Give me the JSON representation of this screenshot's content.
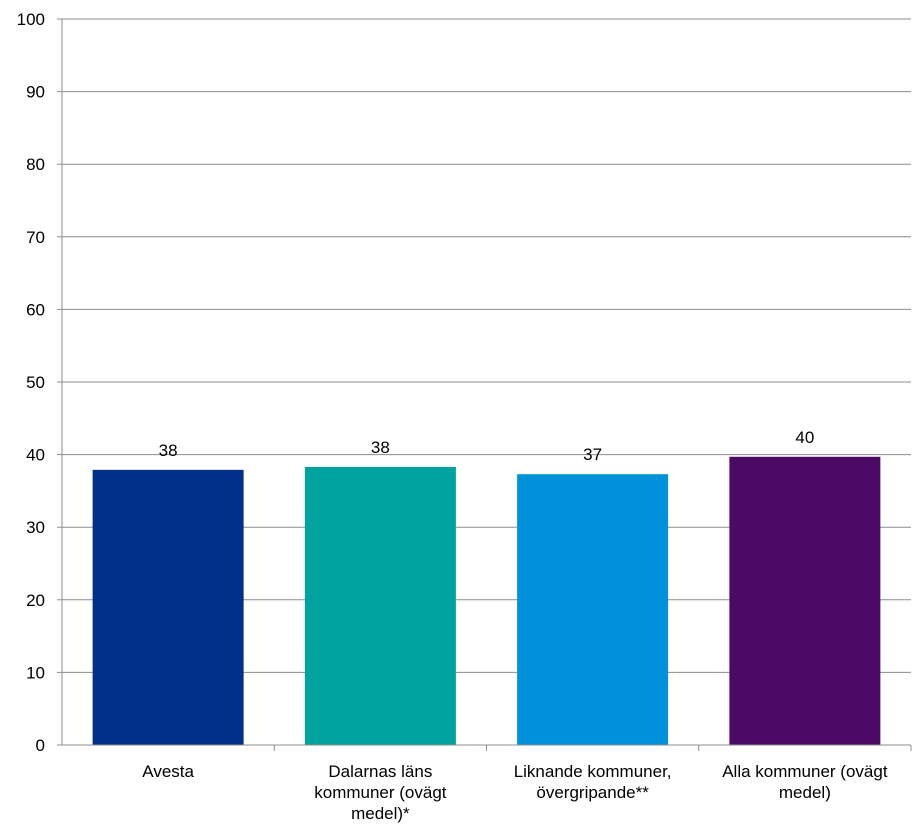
{
  "chart_data": {
    "type": "bar",
    "categories": [
      [
        "Avesta"
      ],
      [
        "Dalarnas läns",
        "kommuner (ovägt",
        "medel)*"
      ],
      [
        "Liknande kommuner,",
        "övergripande**"
      ],
      [
        "Alla kommuner (ovägt",
        "medel)"
      ]
    ],
    "values": [
      37.9,
      38.3,
      37.3,
      39.7
    ],
    "value_labels": [
      "38",
      "38",
      "37",
      "40"
    ],
    "colors": [
      "#003087",
      "#00A39E",
      "#0091DA",
      "#4B0B65"
    ],
    "ylim": [
      0,
      100
    ],
    "yticks": [
      0,
      10,
      20,
      30,
      40,
      50,
      60,
      70,
      80,
      90,
      100
    ],
    "grid": true,
    "legend": "none",
    "title": "",
    "xlabel": "",
    "ylabel": ""
  }
}
